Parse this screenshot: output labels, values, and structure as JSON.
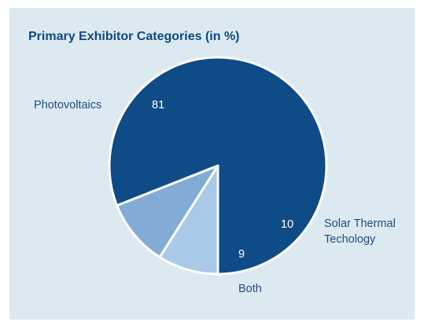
{
  "chart_data": {
    "type": "pie",
    "title": "Primary Exhibitor Categories (in %)",
    "slices": [
      {
        "label": "Photovoltaics",
        "value": 81,
        "value_label": "81",
        "color": "#0e4b87"
      },
      {
        "label": "Solar Thermal Techology",
        "label_lines": [
          "Solar Thermal",
          "Techology"
        ],
        "value": 10,
        "value_label": "10",
        "color": "#82abd6"
      },
      {
        "label": "Both",
        "value": 9,
        "value_label": "9",
        "color": "#a9c9e9"
      }
    ],
    "legend": "none",
    "background_color": "#dde9f1",
    "title_color": "#0b4a84"
  }
}
